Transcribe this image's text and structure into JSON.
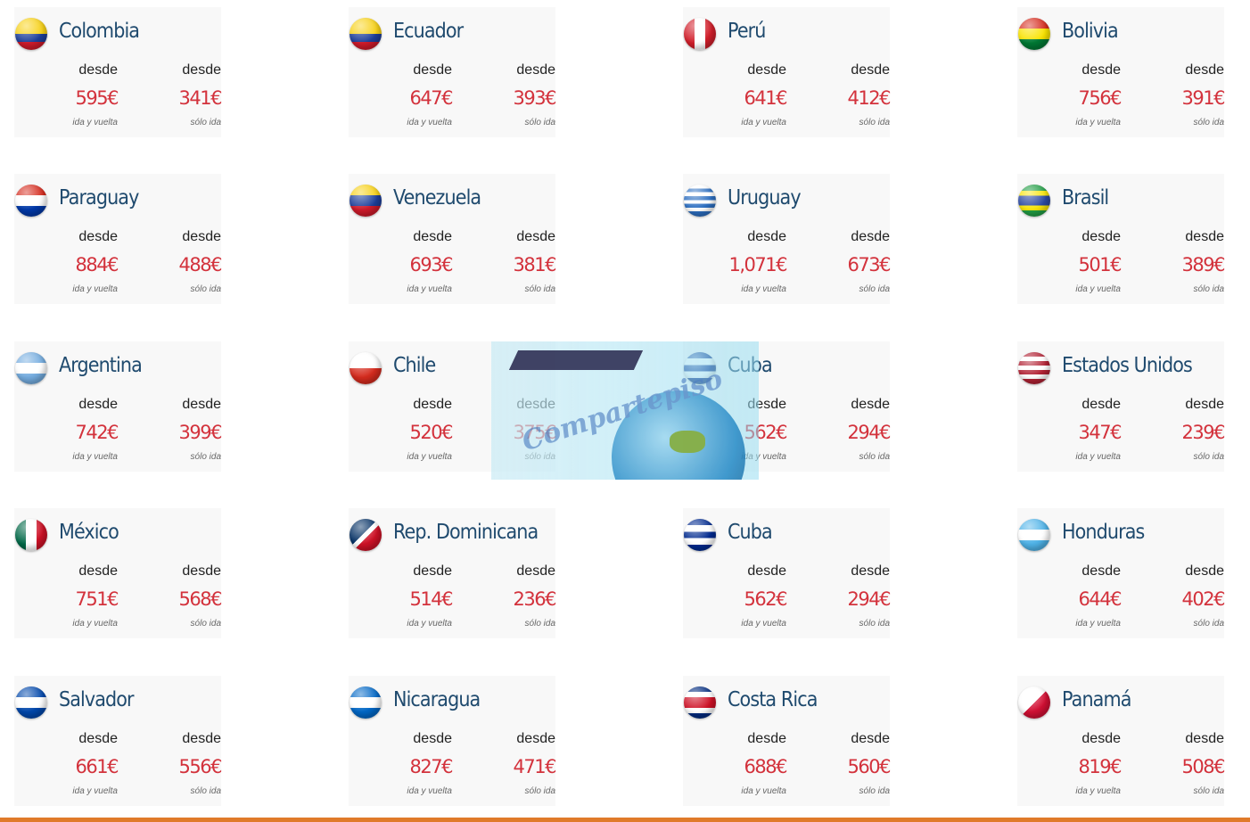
{
  "labels": {
    "desde": "desde",
    "round_trip": "ida y vuelta",
    "one_way": "sólo ida"
  },
  "accent": {
    "title": "#1f4a6e",
    "price": "#d3323c",
    "bottom_bar": "#e07a2a"
  },
  "watermark": {
    "text": "Compartepiso"
  },
  "destinations": [
    {
      "name": "Colombia",
      "round_trip": "595€",
      "one_way": "341€",
      "flag": {
        "icon": "colombia-flag-icon",
        "dir": "180deg",
        "stops": [
          "#f7d117 0 50%",
          "#1d3f9a 50% 75%",
          "#cf1b2b 75%"
        ]
      }
    },
    {
      "name": "Ecuador",
      "round_trip": "647€",
      "one_way": "393€",
      "flag": {
        "icon": "ecuador-flag-icon",
        "dir": "180deg",
        "stops": [
          "#f7d117 0 50%",
          "#1d3f9a 50% 75%",
          "#cf1b2b 75%"
        ]
      }
    },
    {
      "name": "Perú",
      "round_trip": "641€",
      "one_way": "412€",
      "flag": {
        "icon": "peru-flag-icon",
        "dir": "90deg",
        "stops": [
          "#d21f2b 0 33%",
          "#ffffff 33% 67%",
          "#d21f2b 67%"
        ]
      }
    },
    {
      "name": "Bolivia",
      "round_trip": "756€",
      "one_way": "391€",
      "flag": {
        "icon": "bolivia-flag-icon",
        "dir": "180deg",
        "stops": [
          "#d52b1e 0 33%",
          "#f9e300 33% 67%",
          "#007934 67%"
        ]
      }
    },
    {
      "name": "Paraguay",
      "round_trip": "884€",
      "one_way": "488€",
      "flag": {
        "icon": "paraguay-flag-icon",
        "dir": "180deg",
        "stops": [
          "#d52b1e 0 33%",
          "#ffffff 33% 67%",
          "#0038a8 67%"
        ]
      }
    },
    {
      "name": "Venezuela",
      "round_trip": "693€",
      "one_way": "381€",
      "flag": {
        "icon": "venezuela-flag-icon",
        "dir": "180deg",
        "stops": [
          "#f7d117 0 33%",
          "#1d3f9a 33% 67%",
          "#cf1b2b 67%"
        ]
      }
    },
    {
      "name": "Uruguay",
      "round_trip": "1,071€",
      "one_way": "673€",
      "flag": {
        "icon": "uruguay-flag-icon",
        "dir": "180deg",
        "stops": [
          "#ffffff 0 12%",
          "#2d6fc1 12% 24%",
          "#ffffff 24% 36%",
          "#2d6fc1 36% 48%",
          "#ffffff 48% 60%",
          "#2d6fc1 60% 72%",
          "#ffffff 72% 84%",
          "#2d6fc1 84%"
        ]
      }
    },
    {
      "name": "Brasil",
      "round_trip": "501€",
      "one_way": "389€",
      "flag": {
        "icon": "brasil-flag-icon",
        "dir": "180deg",
        "stops": [
          "#229e45 0 20%",
          "#f8e509 20% 35%",
          "#2b49a3 35% 65%",
          "#f8e509 65% 80%",
          "#229e45 80%"
        ]
      }
    },
    {
      "name": "Argentina",
      "round_trip": "742€",
      "one_way": "399€",
      "flag": {
        "icon": "argentina-flag-icon",
        "dir": "180deg",
        "stops": [
          "#74acdf 0 33%",
          "#ffffff 33% 67%",
          "#74acdf 67%"
        ]
      }
    },
    {
      "name": "Chile",
      "round_trip": "520€",
      "one_way": "375€",
      "flag": {
        "icon": "chile-flag-icon",
        "dir": "180deg",
        "stops": [
          "#ffffff 0 50%",
          "#d52b1e 50%"
        ]
      }
    },
    {
      "name": "Cuba",
      "round_trip": "562€",
      "one_way": "294€",
      "flag": {
        "icon": "cuba-flag-icon",
        "dir": "180deg",
        "stops": [
          "#002a8f 0 20%",
          "#ffffff 20% 40%",
          "#002a8f 40% 60%",
          "#ffffff 60% 80%",
          "#002a8f 80%"
        ]
      }
    },
    {
      "name": "Estados Unidos",
      "round_trip": "347€",
      "one_way": "239€",
      "flag": {
        "icon": "usa-flag-icon",
        "dir": "180deg",
        "stops": [
          "#b22234 0 14%",
          "#ffffff 14% 28%",
          "#b22234 28% 42%",
          "#ffffff 42% 56%",
          "#b22234 56% 70%",
          "#ffffff 70% 84%",
          "#b22234 84%"
        ]
      }
    },
    {
      "name": "México",
      "round_trip": "751€",
      "one_way": "568€",
      "flag": {
        "icon": "mexico-flag-icon",
        "dir": "90deg",
        "stops": [
          "#006847 0 33%",
          "#ffffff 33% 67%",
          "#ce1126 67%"
        ]
      }
    },
    {
      "name": "Rep. Dominicana",
      "round_trip": "514€",
      "one_way": "236€",
      "flag": {
        "icon": "dominican-republic-flag-icon",
        "dir": "135deg",
        "stops": [
          "#002d62 0 45%",
          "#ffffff 45% 55%",
          "#ce1126 55%"
        ]
      }
    },
    {
      "name": "Cuba",
      "round_trip": "562€",
      "one_way": "294€",
      "flag": {
        "icon": "cuba-flag-icon",
        "dir": "180deg",
        "stops": [
          "#002a8f 0 20%",
          "#ffffff 20% 40%",
          "#002a8f 40% 60%",
          "#ffffff 60% 80%",
          "#002a8f 80%"
        ]
      }
    },
    {
      "name": "Honduras",
      "round_trip": "644€",
      "one_way": "402€",
      "flag": {
        "icon": "honduras-flag-icon",
        "dir": "180deg",
        "stops": [
          "#4fb3e8 0 33%",
          "#ffffff 33% 67%",
          "#4fb3e8 67%"
        ]
      }
    },
    {
      "name": "Salvador",
      "round_trip": "661€",
      "one_way": "556€",
      "flag": {
        "icon": "el-salvador-flag-icon",
        "dir": "180deg",
        "stops": [
          "#0047ab 0 33%",
          "#ffffff 33% 67%",
          "#0047ab 67%"
        ]
      }
    },
    {
      "name": "Nicaragua",
      "round_trip": "827€",
      "one_way": "471€",
      "flag": {
        "icon": "nicaragua-flag-icon",
        "dir": "180deg",
        "stops": [
          "#0067c6 0 33%",
          "#ffffff 33% 67%",
          "#0067c6 67%"
        ]
      }
    },
    {
      "name": "Costa Rica",
      "round_trip": "688€",
      "one_way": "560€",
      "flag": {
        "icon": "costa-rica-flag-icon",
        "dir": "180deg",
        "stops": [
          "#002b7f 0 17%",
          "#ffffff 17% 33%",
          "#ce1126 33% 67%",
          "#ffffff 67% 83%",
          "#002b7f 83%"
        ]
      }
    },
    {
      "name": "Panamá",
      "round_trip": "819€",
      "one_way": "508€",
      "flag": {
        "icon": "panama-flag-icon",
        "dir": "135deg",
        "stops": [
          "#ffffff 0 50%",
          "#d21034 50%"
        ]
      }
    }
  ]
}
